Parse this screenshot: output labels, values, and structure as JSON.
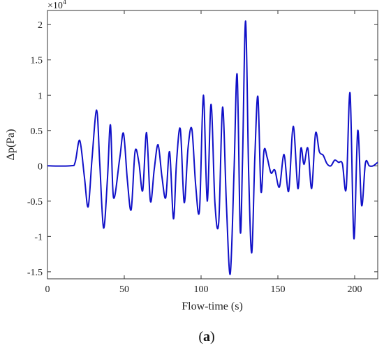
{
  "chart_data": {
    "type": "line",
    "title": "",
    "xlabel": "Flow-time (s)",
    "ylabel_symbol": "Δp",
    "ylabel_unit": "(Pa)",
    "y_multiplier": "×10",
    "y_multiplier_exp": "4",
    "xlim": [
      0,
      215
    ],
    "ylim": [
      -1.6,
      2.2
    ],
    "ylim_units_note": "values shown in units of 10^4 Pa",
    "xticks": [
      0,
      50,
      100,
      150,
      200
    ],
    "yticks": [
      -1.5,
      -1,
      -0.5,
      0,
      0.5,
      1,
      1.5,
      2
    ],
    "ytick_labels": [
      "-1.5",
      "-1",
      "-0.5",
      "0",
      "0.5",
      "1",
      "1.5",
      "2"
    ],
    "xtick_labels": [
      "0",
      "50",
      "100",
      "150",
      "200"
    ],
    "grid": false,
    "line_color": "#1010c8",
    "series": [
      {
        "x": [
          0,
          15,
          18,
          21,
          24,
          26.5,
          29,
          32,
          34,
          36.5,
          39,
          41,
          43,
          47,
          49.5,
          52,
          54.5,
          57,
          59.5,
          62,
          64.5,
          67,
          69.5,
          72,
          74.5,
          77,
          79.5,
          82,
          84,
          86.5,
          89,
          91.5,
          94,
          96.5,
          99,
          101.5,
          104,
          106.5,
          109,
          111.5,
          114,
          116.5,
          119,
          121.5,
          123.5,
          125.5,
          127,
          129,
          131,
          133,
          135,
          137,
          139,
          141,
          143,
          145.5,
          148,
          151,
          154,
          157,
          160,
          163,
          165,
          167,
          169.5,
          172,
          174.5,
          177,
          179.5,
          182,
          184.5,
          187,
          189.5,
          192,
          194.5,
          197,
          199.5,
          202,
          204.5,
          207,
          209.5,
          212,
          215
        ],
        "y": [
          0,
          0,
          0.05,
          0.36,
          -0.15,
          -0.58,
          0.1,
          0.79,
          0.05,
          -0.88,
          -0.2,
          0.58,
          -0.45,
          0.1,
          0.46,
          -0.2,
          -0.62,
          0.2,
          0.05,
          -0.35,
          0.47,
          -0.5,
          -0.05,
          0.3,
          -0.15,
          -0.45,
          0.2,
          -0.75,
          0.05,
          0.52,
          -0.52,
          0.25,
          0.52,
          -0.28,
          -0.62,
          1.0,
          -0.5,
          0.87,
          -0.52,
          -0.8,
          0.83,
          -0.55,
          -1.53,
          -0.05,
          1.29,
          -0.92,
          0.1,
          2.05,
          -0.12,
          -1.23,
          0.12,
          0.98,
          -0.36,
          0.22,
          0.12,
          -0.1,
          -0.06,
          -0.3,
          0.16,
          -0.36,
          0.56,
          -0.32,
          0.25,
          0.02,
          0.25,
          -0.32,
          0.46,
          0.2,
          0.15,
          0.03,
          0.0,
          0.08,
          0.05,
          0.03,
          -0.32,
          1.03,
          -1.03,
          0.5,
          -0.56,
          0.04,
          0.0,
          0.0,
          0.05
        ]
      }
    ]
  },
  "caption": {
    "open": "(",
    "letter": "a",
    "close": ")"
  }
}
